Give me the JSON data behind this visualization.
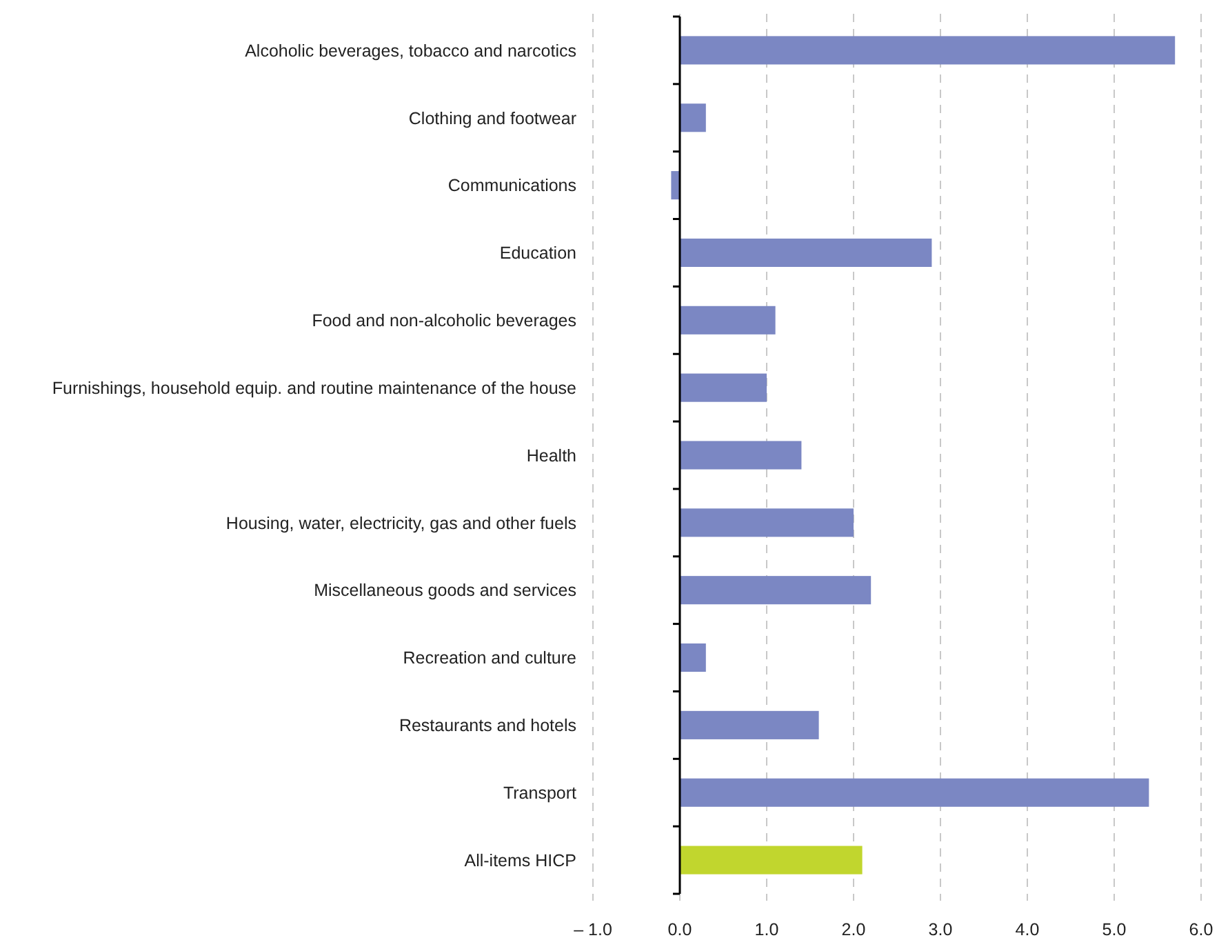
{
  "chart_data": {
    "type": "bar",
    "orientation": "horizontal",
    "categories": [
      "Alcoholic beverages, tobacco and narcotics",
      "Clothing and footwear",
      "Communications",
      "Education",
      "Food and non-alcoholic beverages",
      "Furnishings, household equip. and routine maintenance of the house",
      "Health",
      "Housing, water, electricity, gas and other fuels",
      "Miscellaneous goods and services",
      "Recreation and culture",
      "Restaurants and hotels",
      "Transport",
      "All-items HICP"
    ],
    "values": [
      5.7,
      0.3,
      -0.1,
      2.9,
      1.1,
      1.0,
      1.4,
      2.0,
      2.2,
      0.3,
      1.6,
      5.4,
      2.1
    ],
    "colors": [
      "#7b87c3",
      "#7b87c3",
      "#7b87c3",
      "#7b87c3",
      "#7b87c3",
      "#7b87c3",
      "#7b87c3",
      "#7b87c3",
      "#7b87c3",
      "#7b87c3",
      "#7b87c3",
      "#7b87c3",
      "#c1d62e"
    ],
    "xlim": [
      -1,
      6
    ],
    "xticks": [
      {
        "value": -1,
        "label": "– 1.0"
      },
      {
        "value": 0,
        "label": "0.0"
      },
      {
        "value": 1,
        "label": "1.0"
      },
      {
        "value": 2,
        "label": "2.0"
      },
      {
        "value": 3,
        "label": "3.0"
      },
      {
        "value": 4,
        "label": "4.0"
      },
      {
        "value": 5,
        "label": "5.0"
      },
      {
        "value": 6,
        "label": "6.0"
      }
    ],
    "grid": "x"
  }
}
